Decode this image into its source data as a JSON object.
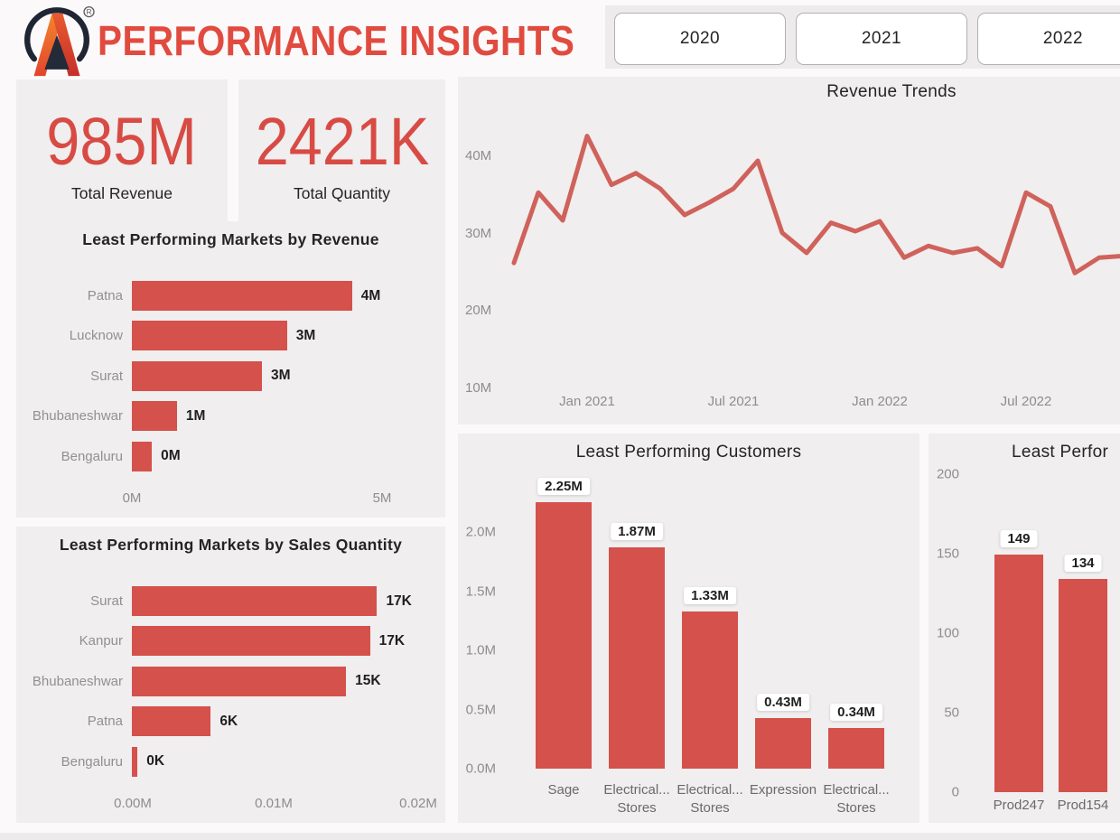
{
  "header": {
    "title": "PERFORMANCE INSIGHTS",
    "logo_name": "brand-a-logo",
    "year_filters": [
      "2020",
      "2021",
      "2022"
    ]
  },
  "kpis": [
    {
      "value": "985M",
      "label": "Total Revenue"
    },
    {
      "value": "2421K",
      "label": "Total Quantity"
    }
  ],
  "colors": {
    "accent_bar": "#D5514B",
    "line": "#CF625B",
    "title_red": "#E14B3F",
    "kpi_red": "#D84B44",
    "card_bg": "#F0EEEF",
    "dark_text": "#252423",
    "axis_gray": "#8E8C8D"
  },
  "chart_data": [
    {
      "id": "markets_by_revenue",
      "type": "bar",
      "orientation": "horizontal",
      "title": "Least Performing Markets by Revenue",
      "categories": [
        "Patna",
        "Lucknow",
        "Surat",
        "Bhubaneshwar",
        "Bengaluru"
      ],
      "values": [
        4.4,
        3.1,
        2.6,
        0.9,
        0.4
      ],
      "value_labels": [
        "4M",
        "3M",
        "3M",
        "1M",
        "0M"
      ],
      "xticks": [
        "0M",
        "5M"
      ],
      "xtick_values": [
        0,
        5
      ],
      "xlim": [
        0,
        5
      ],
      "unit": "M"
    },
    {
      "id": "markets_by_quantity",
      "type": "bar",
      "orientation": "horizontal",
      "title": "Least Performing Markets by Sales Quantity",
      "categories": [
        "Surat",
        "Kanpur",
        "Bhubaneshwar",
        "Patna",
        "Bengaluru"
      ],
      "values": [
        0.0174,
        0.0169,
        0.0152,
        0.0056,
        0.0004
      ],
      "value_labels": [
        "17K",
        "17K",
        "15K",
        "6K",
        "0K"
      ],
      "xticks": [
        "0.00M",
        "0.01M",
        "0.02M"
      ],
      "xtick_values": [
        0,
        0.01,
        0.02
      ],
      "xlim": [
        0,
        0.021
      ],
      "unit": "M"
    },
    {
      "id": "revenue_trends",
      "type": "line",
      "title": "Revenue Trends",
      "x": [
        "Oct 2020",
        "Nov 2020",
        "Dec 2020",
        "Jan 2021",
        "Feb 2021",
        "Mar 2021",
        "Apr 2021",
        "May 2021",
        "Jun 2021",
        "Jul 2021",
        "Aug 2021",
        "Sep 2021",
        "Oct 2021",
        "Nov 2021",
        "Dec 2021",
        "Jan 2022",
        "Feb 2022",
        "Mar 2022",
        "Apr 2022",
        "May 2022",
        "Jun 2022",
        "Jul 2022",
        "Aug 2022",
        "Sep 2022",
        "Oct 2022",
        "Nov 2022"
      ],
      "values": [
        26.2,
        35.3,
        31.7,
        42.6,
        36.3,
        37.8,
        35.8,
        32.4,
        34.0,
        35.8,
        39.4,
        30.1,
        27.5,
        31.4,
        30.3,
        31.6,
        26.9,
        28.4,
        27.5,
        28.1,
        25.8,
        35.3,
        33.5,
        24.9,
        26.9,
        27.1
      ],
      "unit": "M",
      "yticks": [
        {
          "label": "10M",
          "value": 10
        },
        {
          "label": "20M",
          "value": 20
        },
        {
          "label": "30M",
          "value": 30
        },
        {
          "label": "40M",
          "value": 40
        }
      ],
      "xticks": [
        {
          "label": "Jan 2021",
          "index": 3
        },
        {
          "label": "Jul 2021",
          "index": 9
        },
        {
          "label": "Jan 2022",
          "index": 15
        },
        {
          "label": "Jul 2022",
          "index": 21
        }
      ],
      "ylim": [
        8,
        45
      ],
      "grid": false,
      "legend": false
    },
    {
      "id": "least_customers",
      "type": "bar",
      "orientation": "vertical",
      "title": "Least Performing Customers",
      "category_lines": [
        [
          "Sage"
        ],
        [
          "Electrical...",
          "Stores"
        ],
        [
          "Electrical...",
          "Stores"
        ],
        [
          "Expression"
        ],
        [
          "Electrical...",
          "Stores"
        ]
      ],
      "values": [
        2.25,
        1.87,
        1.33,
        0.43,
        0.34
      ],
      "value_labels": [
        "2.25M",
        "1.87M",
        "1.33M",
        "0.43M",
        "0.34M"
      ],
      "yticks": [
        "0.0M",
        "0.5M",
        "1.0M",
        "1.5M",
        "2.0M"
      ],
      "ylim": [
        0,
        2.33
      ],
      "unit": "M"
    },
    {
      "id": "least_products",
      "type": "bar",
      "orientation": "vertical",
      "title": "Least Perfor",
      "category_lines": [
        [
          "Prod247"
        ],
        [
          "Prod154"
        ]
      ],
      "values": [
        149,
        134
      ],
      "value_labels": [
        "149",
        "134"
      ],
      "yticks": [
        "0",
        "50",
        "100",
        "150",
        "200"
      ],
      "ylim": [
        0,
        225
      ],
      "unit": "count"
    }
  ]
}
